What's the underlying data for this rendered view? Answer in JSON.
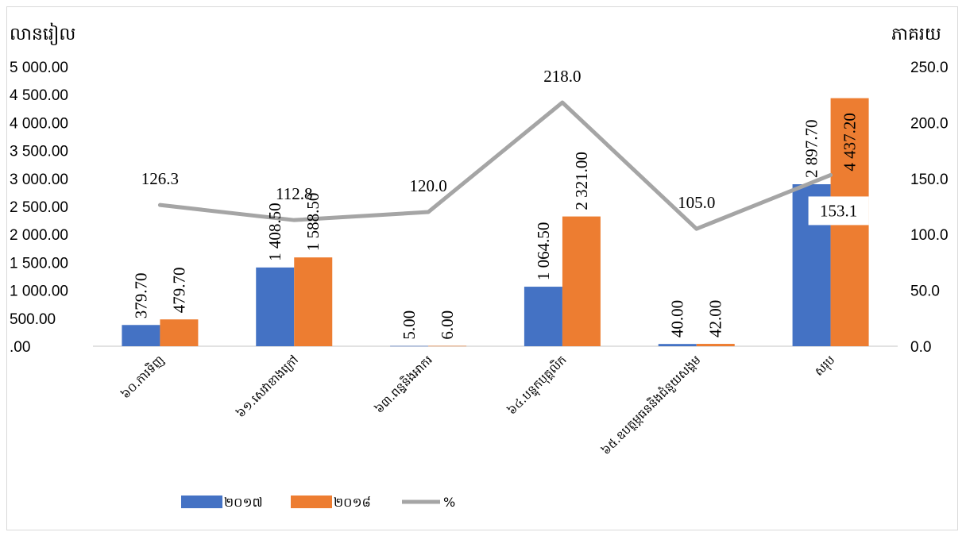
{
  "chart_data": {
    "type": "bar",
    "y_left_unit": "លានរៀល",
    "y_right_unit": "ភាគរយ",
    "categories": [
      "៦០.ការទិញ",
      "៦១.សេវាខាងក្រៅ",
      "៦៣.ពន្ធនិងអាករ",
      "៦៤.បន្ទុកបុគ្គលិក",
      "៦៥.ឧបត្ថម្ភធននិងជំនួយសង្គម",
      "សរុប"
    ],
    "series": [
      {
        "name": "២០១៧",
        "type": "bar",
        "axis": "left",
        "color": "#4472C4",
        "values": [
          379.7,
          1408.5,
          5.0,
          1064.5,
          40.0,
          2897.7
        ],
        "labels": [
          "379.70",
          "1 408.50",
          "5.00",
          "1 064.50",
          "40.00",
          "2 897.70"
        ]
      },
      {
        "name": "២០១៨",
        "type": "bar",
        "axis": "left",
        "color": "#ED7D31",
        "values": [
          479.7,
          1588.5,
          6.0,
          2321.0,
          42.0,
          4437.2
        ],
        "labels": [
          "479.70",
          "1 588.50",
          "6.00",
          "2 321.00",
          "42.00",
          "4 437.20"
        ]
      },
      {
        "name": "%",
        "type": "line",
        "axis": "right",
        "color": "#A5A5A5",
        "values": [
          126.3,
          112.8,
          120.0,
          218.0,
          105.0,
          153.1
        ],
        "labels": [
          "126.3",
          "112.8",
          "120.0",
          "218.0",
          "105.0",
          "153.1"
        ]
      }
    ],
    "y_left": {
      "min": 0,
      "max": 5000,
      "step": 500,
      "ticks": [
        ".00",
        "500.00",
        "1 000.00",
        "1 500.00",
        "2 000.00",
        "2 500.00",
        "3 000.00",
        "3 500.00",
        "4 000.00",
        "4 500.00",
        "5 000.00"
      ]
    },
    "y_right": {
      "min": 0,
      "max": 250,
      "step": 50,
      "ticks": [
        "0.0",
        "50.0",
        "100.0",
        "150.0",
        "200.0",
        "250.0"
      ]
    },
    "grid": false,
    "legend_position": "bottom"
  }
}
